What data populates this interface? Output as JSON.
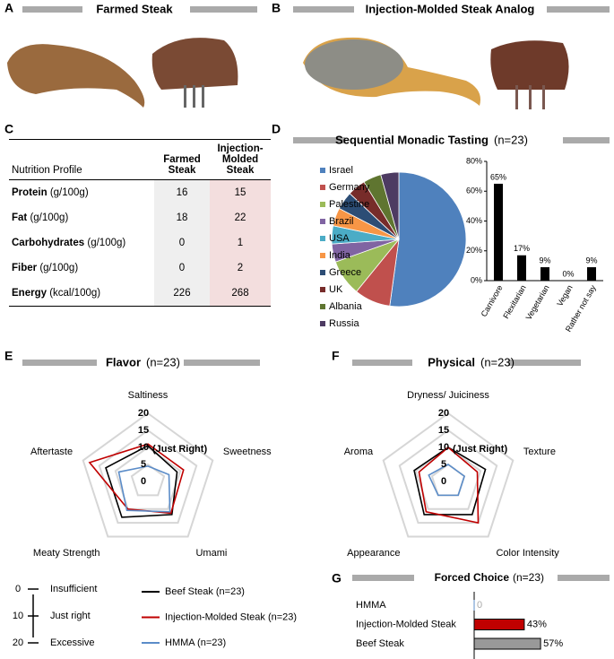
{
  "panels": [
    "A",
    "B",
    "C",
    "D",
    "E",
    "F",
    "G"
  ],
  "photo_titles": [
    "Farmed Steak",
    "Injection-Molded Steak Analog"
  ],
  "table": {
    "columns": [
      "Nutrition Profile",
      "Farmed Steak",
      "Injection-Molded Steak"
    ],
    "rows": [
      [
        "Protein",
        "(g/100g)",
        16,
        15
      ],
      [
        "Fat",
        "(g/100g)",
        18,
        22
      ],
      [
        "Carbohydrates",
        "(g/100g)",
        0,
        1
      ],
      [
        "Fiber",
        "(g/100g)",
        0,
        2
      ],
      [
        "Energy",
        "(kcal/100g)",
        226,
        268
      ]
    ]
  },
  "scale_legend": [
    {
      "value": 0,
      "label": "Insufficient"
    },
    {
      "value": 10,
      "label": "Just right"
    },
    {
      "value": 20,
      "label": "Excessive"
    }
  ],
  "chart_data": [
    {
      "type": "pie",
      "title": "Sequential Monadic Tasting",
      "subtitle": "(n=23)",
      "categories": [
        "Israel",
        "Germany",
        "Palestine",
        "Brazil",
        "USA",
        "India",
        "Greece",
        "UK",
        "Albania",
        "Russia"
      ],
      "values": [
        12,
        2,
        2,
        1,
        1,
        1,
        1,
        1,
        1,
        1
      ],
      "colors": [
        "#4f81bd",
        "#c0504d",
        "#9bbb59",
        "#8064a2",
        "#4bacc6",
        "#f79646",
        "#2c4d75",
        "#772c2a",
        "#5f7530",
        "#4d3b62"
      ]
    },
    {
      "type": "bar",
      "categories": [
        "Carnivore",
        "Flexitarian",
        "Vegetarian",
        "Vegan",
        "Rather not say"
      ],
      "values": [
        65,
        17,
        9,
        0,
        9
      ],
      "value_labels": [
        "65%",
        "17%",
        "9%",
        "0%",
        "9%"
      ],
      "color": "#000000",
      "ylim": [
        0,
        80
      ],
      "yticks": [
        {
          "value": 0,
          "label": "0%"
        },
        {
          "value": 20,
          "label": "20%"
        },
        {
          "value": 40,
          "label": "40%"
        },
        {
          "value": 60,
          "label": "60%"
        },
        {
          "value": 80,
          "label": "80%"
        }
      ]
    },
    {
      "type": "radar",
      "title": "Flavor",
      "subtitle": "(n=23)",
      "annotation": "(Just Right)",
      "categories": [
        "Saltiness",
        "Sweetness",
        "Umami",
        "Meaty Strength",
        "Aftertaste"
      ],
      "rlim": [
        0,
        20
      ],
      "rticks": [
        0,
        5,
        10,
        15,
        20
      ],
      "series": [
        {
          "name": "Beef Steak (n=23)",
          "color": "#000000",
          "values": [
            10.5,
            9,
            12,
            13,
            13
          ]
        },
        {
          "name": "Injection-Molded Steak (n=23)",
          "color": "#c00000",
          "values": [
            11,
            11,
            11.5,
            10,
            18
          ]
        },
        {
          "name": "HMMA (n=23)",
          "color": "#5b8cc8",
          "values": [
            4.5,
            6.5,
            11,
            10.5,
            9
          ]
        }
      ]
    },
    {
      "type": "radar",
      "title": "Physical",
      "subtitle": "(n=23)",
      "annotation": "(Just Right)",
      "categories": [
        "Dryness/ Juiciness",
        "Texture",
        "Color Intensity",
        "Appearance",
        "Aroma"
      ],
      "rlim": [
        0,
        20
      ],
      "rticks": [
        0,
        5,
        10,
        15,
        20
      ],
      "series": [
        {
          "color": "#000000",
          "values": [
            10,
            11.5,
            12,
            12,
            10.5
          ]
        },
        {
          "color": "#c00000",
          "values": [
            10,
            9,
            15,
            11,
            9
          ]
        },
        {
          "color": "#5b8cc8",
          "values": [
            5,
            5,
            5,
            5,
            6
          ]
        }
      ]
    },
    {
      "type": "hbar",
      "title": "Forced Choice",
      "subtitle": "(n=23)",
      "categories": [
        "HMMA",
        "Injection-Molded Steak",
        "Beef Steak"
      ],
      "values": [
        0,
        43,
        57
      ],
      "value_labels": [
        "0",
        "43%",
        "57%"
      ],
      "colors": [
        "#5b8cc8",
        "#c00000",
        "#999999"
      ],
      "xlim": [
        0,
        60
      ]
    }
  ]
}
